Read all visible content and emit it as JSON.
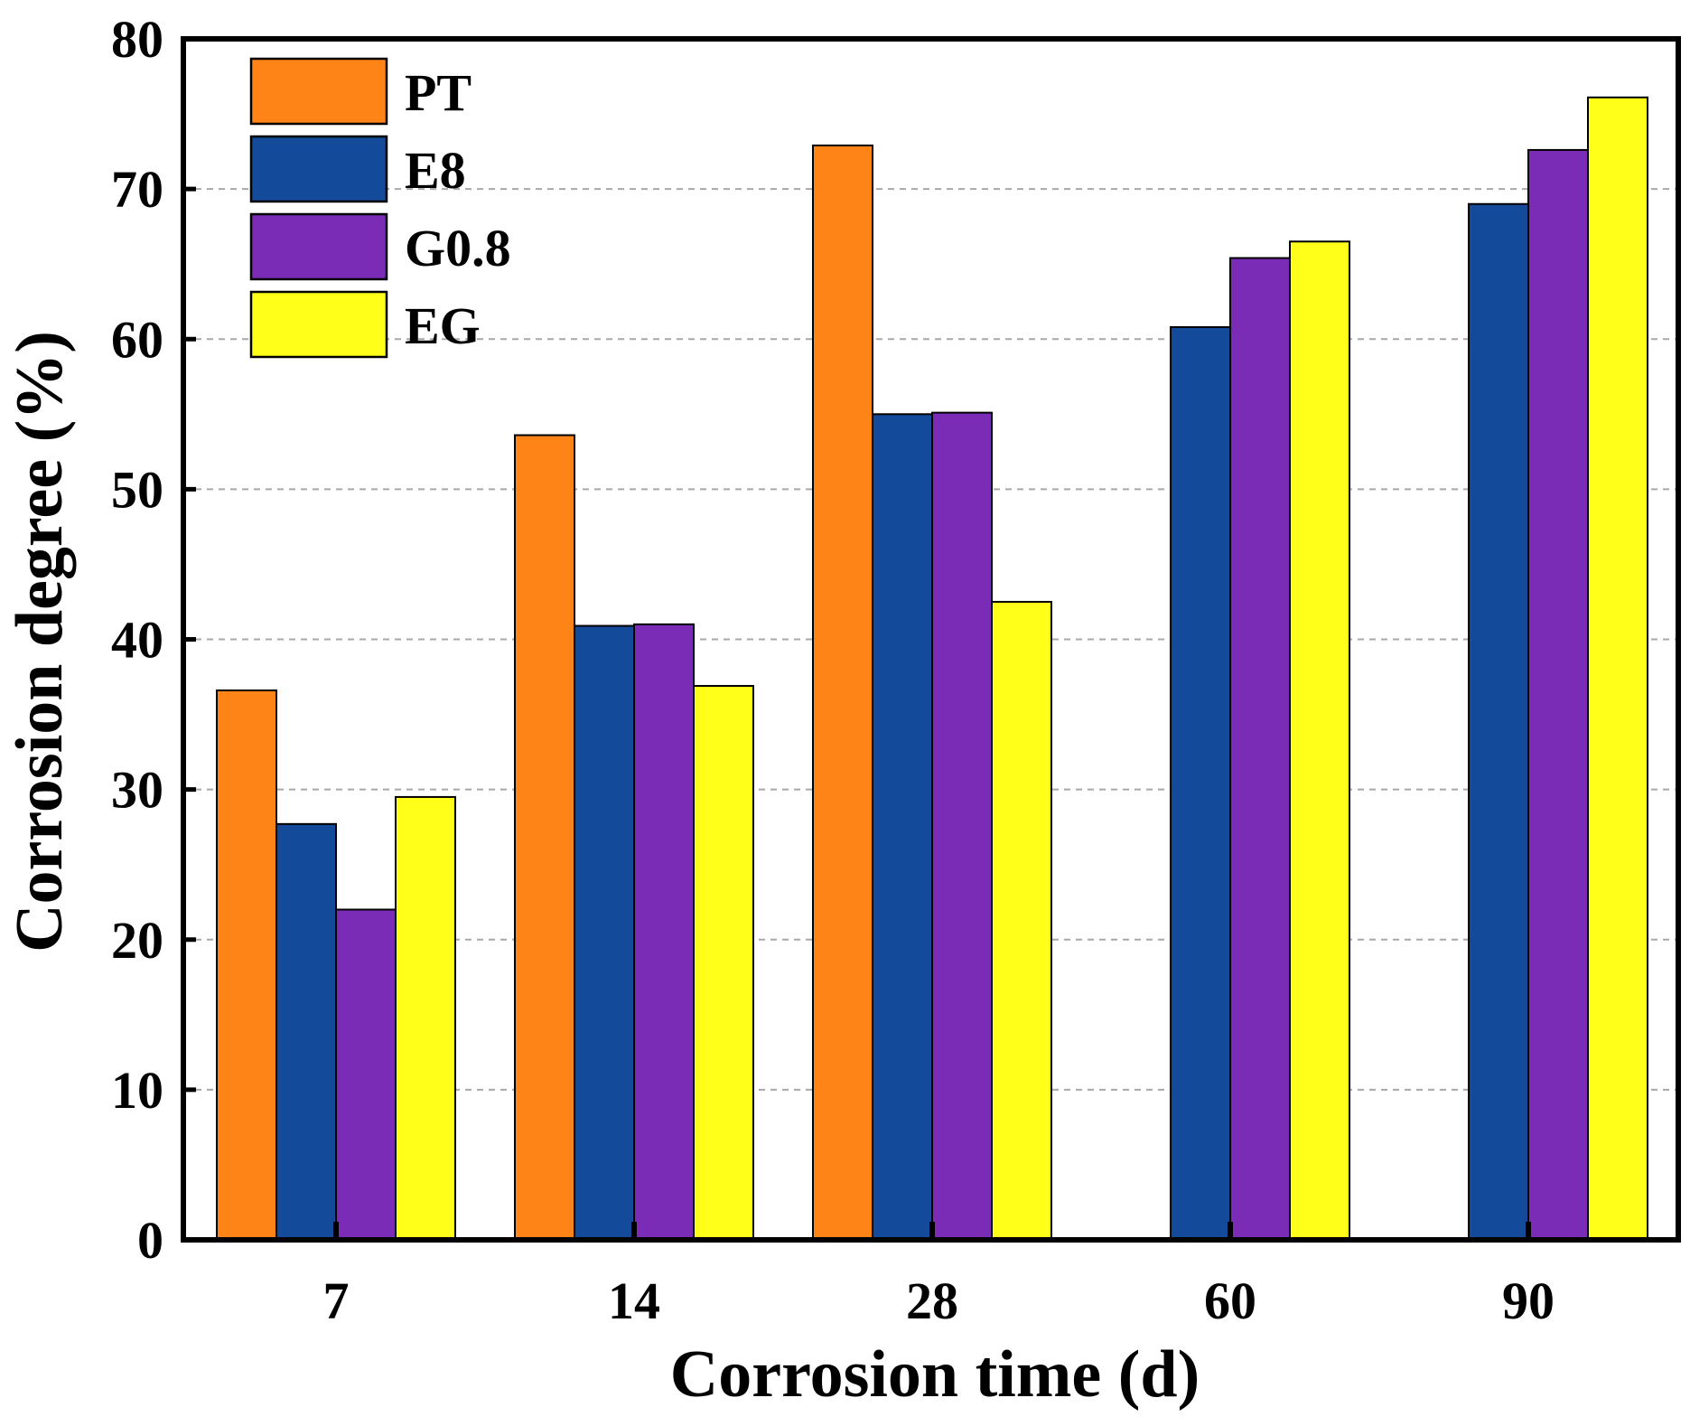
{
  "chart_data": {
    "type": "bar",
    "xlabel": "Corrosion time (d)",
    "ylabel": "Corrosion degree (%)",
    "categories": [
      "7",
      "14",
      "28",
      "60",
      "90"
    ],
    "ylim": [
      0,
      80
    ],
    "yticks": [
      0,
      10,
      20,
      30,
      40,
      50,
      60,
      70,
      80
    ],
    "grid": "horizontal-dashed",
    "legend_position": "top-left",
    "series": [
      {
        "name": "PT",
        "color": "#ff8418",
        "values": [
          36.6,
          53.6,
          72.9,
          null,
          null
        ]
      },
      {
        "name": "E8",
        "color": "#134a99",
        "values": [
          27.7,
          40.9,
          55.0,
          60.8,
          69.0
        ]
      },
      {
        "name": "G0.8",
        "color": "#7b2cb7",
        "values": [
          22.0,
          41.0,
          55.1,
          65.4,
          72.6
        ]
      },
      {
        "name": "EG",
        "color": "#ffff1a",
        "values": [
          29.5,
          36.9,
          42.5,
          66.5,
          76.1
        ]
      }
    ]
  }
}
